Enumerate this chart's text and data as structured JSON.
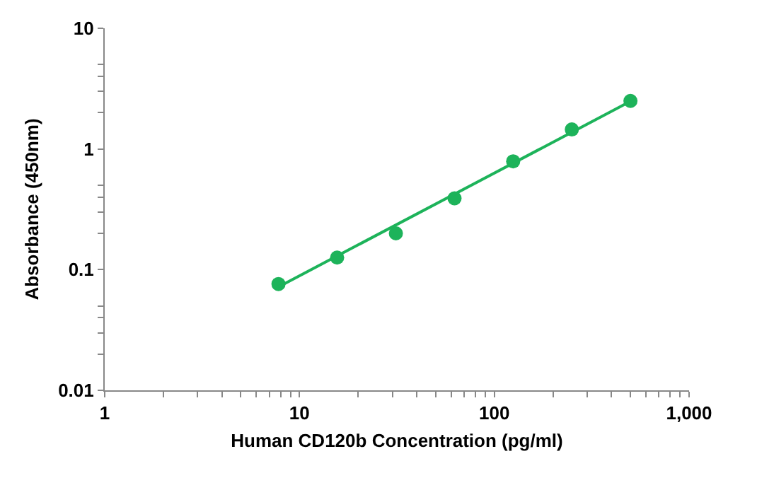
{
  "chart_data": {
    "type": "scatter",
    "xlabel": "Human CD120b Concentration (pg/ml)",
    "ylabel": "Absorbance (450nm)",
    "log": "xy",
    "grid": false,
    "marker": "circle",
    "xlim": [
      1,
      1000
    ],
    "ylim": [
      0.01,
      10
    ],
    "xticks": [
      1,
      {
        "value": 2,
        "label": null
      },
      {
        "value": 3,
        "label": null
      },
      {
        "value": 4,
        "label": null
      },
      {
        "value": 5,
        "label": null
      },
      {
        "value": 6,
        "label": null
      },
      {
        "value": 7,
        "label": null
      },
      {
        "value": 8,
        "label": null
      },
      {
        "value": 9,
        "label": null
      },
      10,
      {
        "value": 20,
        "label": null
      },
      {
        "value": 30,
        "label": null
      },
      {
        "value": 40,
        "label": null
      },
      {
        "value": 50,
        "label": null
      },
      {
        "value": 60,
        "label": null
      },
      {
        "value": 70,
        "label": null
      },
      {
        "value": 80,
        "label": null
      },
      {
        "value": 90,
        "label": null
      },
      100,
      {
        "value": 200,
        "label": null
      },
      {
        "value": 300,
        "label": null
      },
      {
        "value": 400,
        "label": null
      },
      {
        "value": 500,
        "label": null
      },
      {
        "value": 600,
        "label": null
      },
      {
        "value": 700,
        "label": null
      },
      {
        "value": 800,
        "label": null
      },
      {
        "value": 900,
        "label": null
      },
      {
        "value": 1000,
        "label": "1,000"
      }
    ],
    "yticks": [
      0.01,
      {
        "value": 0.02,
        "label": null
      },
      {
        "value": 0.03,
        "label": null
      },
      {
        "value": 0.04,
        "label": null
      },
      {
        "value": 0.05,
        "label": null
      },
      0.1,
      {
        "value": 0.2,
        "label": null
      },
      {
        "value": 0.3,
        "label": null
      },
      {
        "value": 0.4,
        "label": null
      },
      {
        "value": 0.5,
        "label": null
      },
      1,
      {
        "value": 2,
        "label": null
      },
      {
        "value": 3,
        "label": null
      },
      {
        "value": 4,
        "label": null
      },
      {
        "value": 5,
        "label": null
      },
      10
    ],
    "series": [
      {
        "color": "#1db35a",
        "x": [
          7.8,
          15.6,
          31.25,
          62.5,
          125,
          250,
          500
        ],
        "values": [
          0.076,
          0.126,
          0.2,
          0.39,
          0.79,
          1.45,
          2.5
        ]
      },
      {
        "type": "line",
        "marker": "none",
        "line_style": "solid",
        "color": "#1db35a",
        "x": [
          7.8,
          500
        ],
        "values": [
          0.072,
          2.48
        ]
      }
    ]
  }
}
